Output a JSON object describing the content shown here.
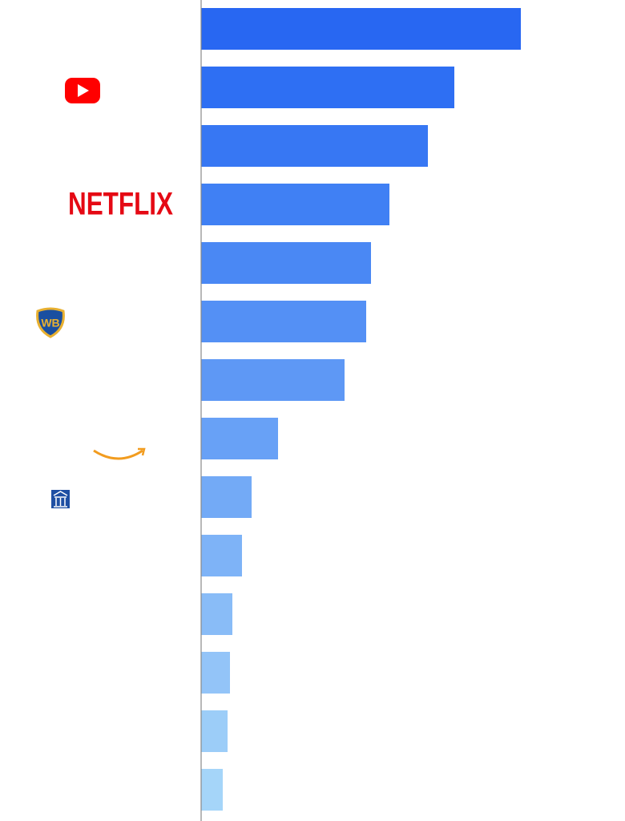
{
  "chart_data": {
    "type": "barh",
    "categories": [
      null,
      null,
      null,
      "NETFLIX",
      null,
      null,
      null,
      null,
      null,
      null,
      null,
      null,
      null,
      null
    ],
    "values": [
      399,
      316,
      283,
      235,
      212,
      206,
      179,
      96,
      63,
      51,
      39,
      36,
      33,
      27
    ],
    "colors": [
      "#2867f2",
      "#2e6ff3",
      "#3777f3",
      "#4080f4",
      "#4a88f4",
      "#5490f5",
      "#5e98f5",
      "#68a1f6",
      "#73aaf6",
      "#7eb3f7",
      "#89bcf7",
      "#93c4f8",
      "#9ccdf8",
      "#a5d5f9"
    ],
    "xlim": [
      0,
      529
    ]
  }
}
